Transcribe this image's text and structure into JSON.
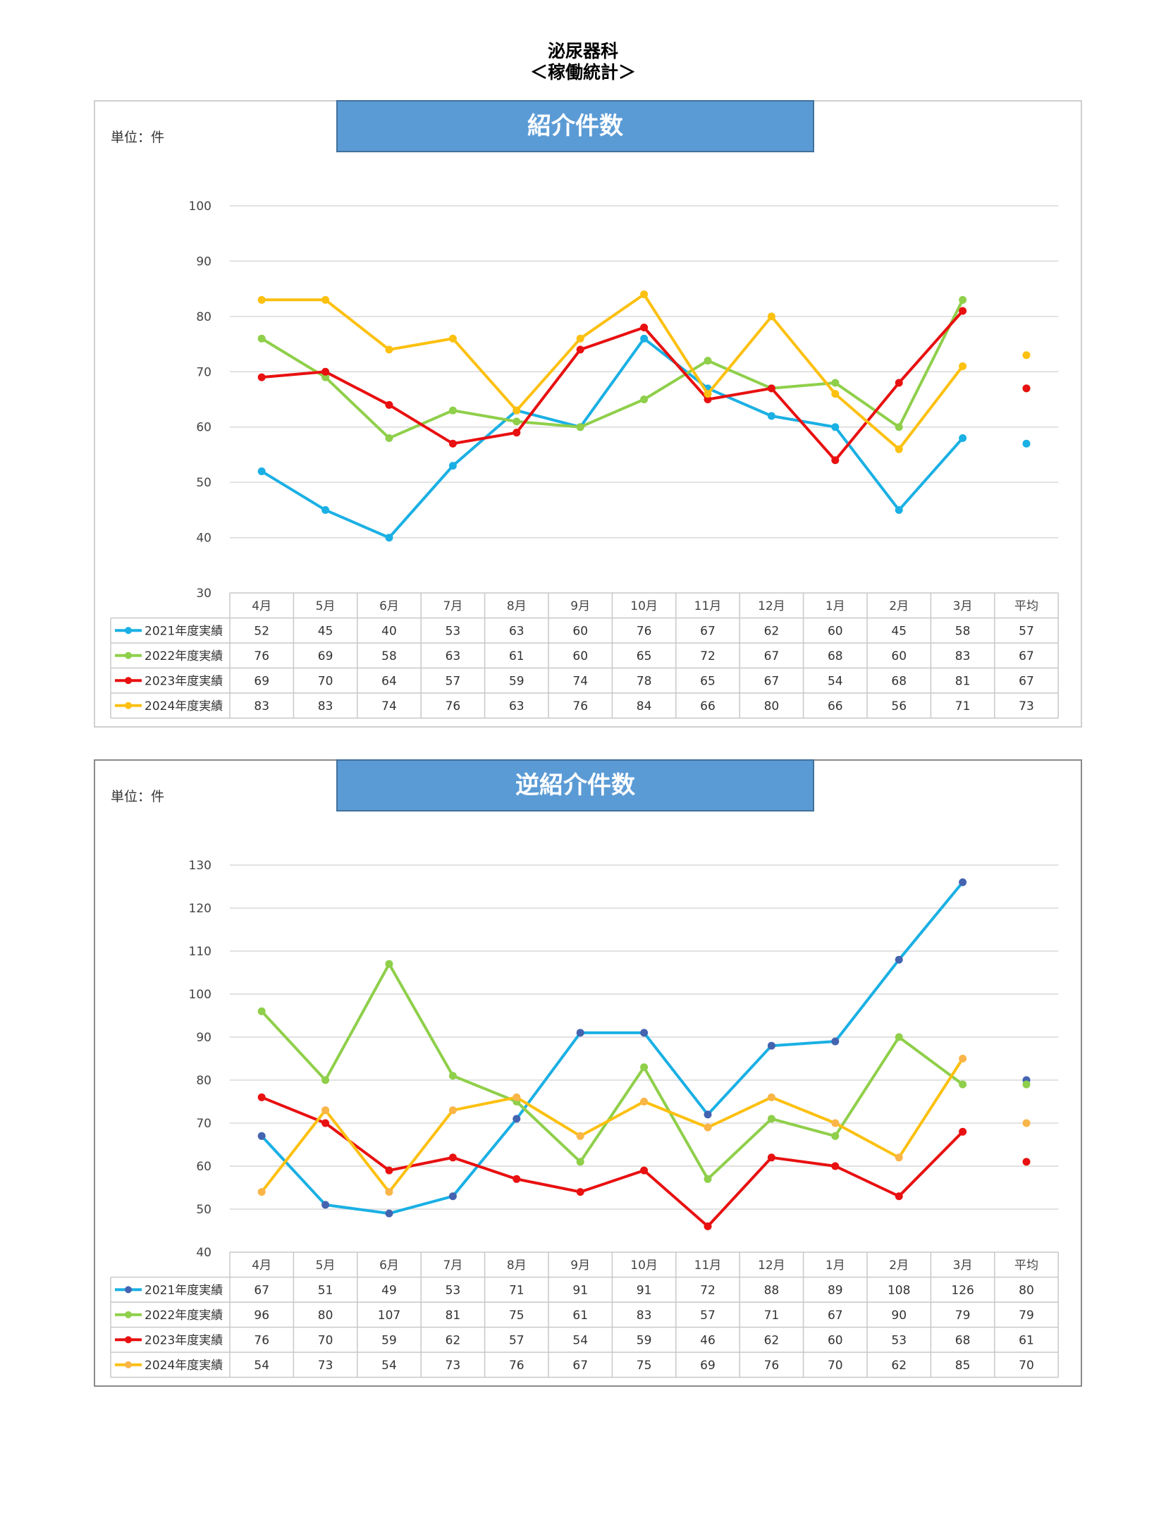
{
  "page": {
    "title_line1": "泌尿器科",
    "title_line2": "＜稼働統計＞"
  },
  "colors": {
    "s2021": "#1ab0e4",
    "s2022": "#8fcf4a",
    "s2023": "#e81010",
    "s2024": "#fcc010",
    "title_bg": "#5b9bd5",
    "grid": "#d9d9d9",
    "table_border": "#c8c8c8"
  },
  "legend_marker": "line-with-dot-marker",
  "chart_data": [
    {
      "type": "line",
      "title": "紹介件数",
      "unit_label": "単位：件",
      "categories": [
        "4月",
        "5月",
        "6月",
        "7月",
        "8月",
        "9月",
        "10月",
        "11月",
        "12月",
        "1月",
        "2月",
        "3月"
      ],
      "average_label": "平均",
      "ylim": [
        30,
        100
      ],
      "yticks": [
        30,
        40,
        50,
        60,
        70,
        80,
        90,
        100
      ],
      "grid": true,
      "legend": "data-table-left",
      "series": [
        {
          "name": "2021年度実績",
          "color": "#1ab0e4",
          "values": [
            52,
            45,
            40,
            53,
            63,
            60,
            76,
            67,
            62,
            60,
            45,
            58
          ],
          "average": 57
        },
        {
          "name": "2022年度実績",
          "color": "#8fcf4a",
          "values": [
            76,
            69,
            58,
            63,
            61,
            60,
            65,
            72,
            67,
            68,
            60,
            83
          ],
          "average": 67
        },
        {
          "name": "2023年度実績",
          "color": "#e81010",
          "values": [
            69,
            70,
            64,
            57,
            59,
            74,
            78,
            65,
            67,
            54,
            68,
            81
          ],
          "average": 67
        },
        {
          "name": "2024年度実績",
          "color": "#fcc010",
          "values": [
            83,
            83,
            74,
            76,
            63,
            76,
            84,
            66,
            80,
            66,
            56,
            71
          ],
          "average": 73
        }
      ]
    },
    {
      "type": "line",
      "title": "逆紹介件数",
      "unit_label": "単位：件",
      "categories": [
        "4月",
        "5月",
        "6月",
        "7月",
        "8月",
        "9月",
        "10月",
        "11月",
        "12月",
        "1月",
        "2月",
        "3月"
      ],
      "average_label": "平均",
      "ylim": [
        40,
        130
      ],
      "yticks": [
        40,
        50,
        60,
        70,
        80,
        90,
        100,
        110,
        120,
        130
      ],
      "grid": true,
      "legend": "data-table-left",
      "series": [
        {
          "name": "2021年度実績",
          "color": "#1ab0e4",
          "marker_color": "#4464b0",
          "values": [
            67,
            51,
            49,
            53,
            71,
            91,
            91,
            72,
            88,
            89,
            108,
            126
          ],
          "average": 80
        },
        {
          "name": "2022年度実績",
          "color": "#8fcf4a",
          "marker_color": "#8fcf4a",
          "values": [
            96,
            80,
            107,
            81,
            75,
            61,
            83,
            57,
            71,
            67,
            90,
            79
          ],
          "average": 79
        },
        {
          "name": "2023年度実績",
          "color": "#e81010",
          "marker_color": "#e81010",
          "values": [
            76,
            70,
            59,
            62,
            57,
            54,
            59,
            46,
            62,
            60,
            53,
            68
          ],
          "average": 61
        },
        {
          "name": "2024年度実績",
          "color": "#fcc010",
          "marker_color": "#f9b548",
          "values": [
            54,
            73,
            54,
            73,
            76,
            67,
            75,
            69,
            76,
            70,
            62,
            85
          ],
          "average": 70
        }
      ]
    }
  ]
}
